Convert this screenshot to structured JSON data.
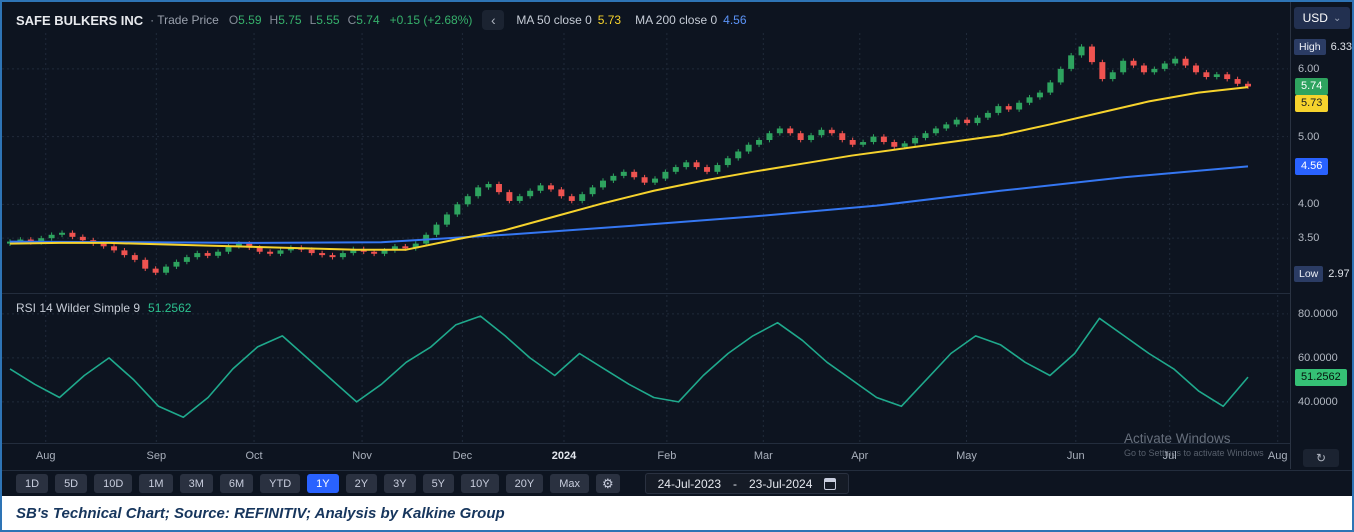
{
  "header": {
    "symbol": "SAFE BULKERS INC",
    "series_label": "· Trade Price",
    "ohlc": {
      "o_label": "O",
      "o": "5.59",
      "h_label": "H",
      "h": "5.75",
      "l_label": "L",
      "l": "5.55",
      "c_label": "C",
      "c": "5.74",
      "change": "+0.15 (+2.68%)"
    },
    "ma50_label": "MA 50 close 0",
    "ma50_value": "5.73",
    "ma200_label": "MA 200 close 0",
    "ma200_value": "4.56"
  },
  "usd": {
    "label": "USD"
  },
  "icons": {
    "gear": "⚙",
    "caret_down": "⌄",
    "collapse": "‹",
    "reset": "↻"
  },
  "price_axis": {
    "high_label": "High",
    "high_value": "6.33",
    "labels": [
      "6.00",
      "5.00",
      "4.00",
      "3.50"
    ],
    "last_price": "5.74",
    "ma50_value": "5.73",
    "ma200_value": "4.56",
    "low_label": "Low",
    "low_value": "2.97"
  },
  "rsi": {
    "legend_label": "RSI 14 Wilder Simple 9",
    "legend_value": "51.2562",
    "axis_labels": [
      "80.0000",
      "60.0000",
      "40.0000"
    ],
    "value_badge": "51.2562"
  },
  "toolbar": {
    "ranges": [
      "1D",
      "5D",
      "10D",
      "1M",
      "3M",
      "6M",
      "YTD",
      "1Y",
      "2Y",
      "3Y",
      "5Y",
      "10Y",
      "20Y",
      "Max"
    ],
    "active_range": "1Y",
    "date_from": "24-Jul-2023",
    "date_sep": "-",
    "date_to": "23-Jul-2024"
  },
  "watermark": {
    "line1": "Activate Windows",
    "line2": "Go to Settings to activate Windows"
  },
  "caption": {
    "text": "SB's Technical Chart; Source: REFINITIV; Analysis by Kalkine Group"
  },
  "chart_data": {
    "type": "candlestick",
    "title": "SAFE BULKERS INC - Trade Price, 1Y daily, with MA50, MA200 and RSI(14)",
    "x_range_labels": [
      "24-Jul-2023",
      "23-Jul-2024"
    ],
    "months": [
      {
        "label": "Aug",
        "f": 0.034
      },
      {
        "label": "Sep",
        "f": 0.12
      },
      {
        "label": "Oct",
        "f": 0.196
      },
      {
        "label": "Nov",
        "f": 0.28
      },
      {
        "label": "Dec",
        "f": 0.358
      },
      {
        "label": "2024",
        "f": 0.437,
        "strong": true
      },
      {
        "label": "Feb",
        "f": 0.517
      },
      {
        "label": "Mar",
        "f": 0.592
      },
      {
        "label": "Apr",
        "f": 0.667
      },
      {
        "label": "May",
        "f": 0.75
      },
      {
        "label": "Jun",
        "f": 0.835
      },
      {
        "label": "Jul",
        "f": 0.908
      },
      {
        "label": "Aug",
        "f": 0.992
      }
    ],
    "price_panel": {
      "ylim": [
        2.72,
        6.53
      ],
      "grid_levels": [
        6.0,
        5.0,
        4.0,
        3.5
      ],
      "high": 6.33,
      "low": 2.97,
      "last_close": 5.74,
      "up_color": "#2ea35f",
      "down_color": "#ef5350",
      "closes": [
        3.45,
        3.48,
        3.44,
        3.5,
        3.55,
        3.58,
        3.52,
        3.47,
        3.42,
        3.38,
        3.32,
        3.25,
        3.18,
        3.05,
        2.99,
        3.08,
        3.15,
        3.22,
        3.28,
        3.24,
        3.3,
        3.38,
        3.42,
        3.36,
        3.3,
        3.27,
        3.32,
        3.36,
        3.33,
        3.28,
        3.25,
        3.22,
        3.28,
        3.34,
        3.3,
        3.27,
        3.32,
        3.38,
        3.35,
        3.42,
        3.55,
        3.7,
        3.85,
        4.0,
        4.12,
        4.25,
        4.3,
        4.18,
        4.05,
        4.12,
        4.2,
        4.28,
        4.22,
        4.12,
        4.05,
        4.15,
        4.25,
        4.35,
        4.42,
        4.48,
        4.4,
        4.32,
        4.38,
        4.48,
        4.55,
        4.62,
        4.55,
        4.48,
        4.58,
        4.68,
        4.78,
        4.88,
        4.95,
        5.05,
        5.12,
        5.05,
        4.95,
        5.02,
        5.1,
        5.05,
        4.95,
        4.88,
        4.92,
        5.0,
        4.92,
        4.85,
        4.9,
        4.98,
        5.05,
        5.12,
        5.18,
        5.25,
        5.2,
        5.28,
        5.35,
        5.45,
        5.4,
        5.5,
        5.58,
        5.65,
        5.8,
        6.0,
        6.2,
        6.33,
        6.1,
        5.85,
        5.95,
        6.12,
        6.05,
        5.95,
        6.0,
        6.08,
        6.15,
        6.05,
        5.95,
        5.88,
        5.92,
        5.85,
        5.78,
        5.74
      ],
      "series": [
        {
          "name": "MA 50",
          "color": "#f6d32d",
          "last": 5.73,
          "values": [
            3.42,
            3.43,
            3.43,
            3.41,
            3.39,
            3.37,
            3.35,
            3.33,
            3.33,
            3.48,
            3.62,
            3.82,
            4.02,
            4.2,
            4.35,
            4.48,
            4.6,
            4.72,
            4.82,
            4.92,
            5.02,
            5.18,
            5.35,
            5.52,
            5.65,
            5.73
          ]
        },
        {
          "name": "MA 200",
          "color": "#3577f2",
          "last": 4.56,
          "values": [
            3.45,
            3.44,
            3.43,
            3.44,
            3.55,
            3.68,
            3.82,
            3.98,
            4.2,
            4.4,
            4.56
          ]
        }
      ]
    },
    "rsi_panel": {
      "ylim": [
        20.4,
        88.6
      ],
      "grid_levels": [
        80,
        60,
        40
      ],
      "last": 51.2562,
      "color": "#1fa98c",
      "values": [
        55,
        48,
        42,
        52,
        60,
        50,
        38,
        33,
        42,
        55,
        65,
        70,
        60,
        50,
        40,
        48,
        58,
        65,
        75,
        79,
        70,
        60,
        52,
        62,
        55,
        48,
        42,
        40,
        52,
        62,
        70,
        76,
        68,
        58,
        50,
        42,
        38,
        50,
        62,
        70,
        66,
        58,
        52,
        62,
        78,
        70,
        62,
        55,
        45,
        38,
        51.26
      ]
    }
  }
}
